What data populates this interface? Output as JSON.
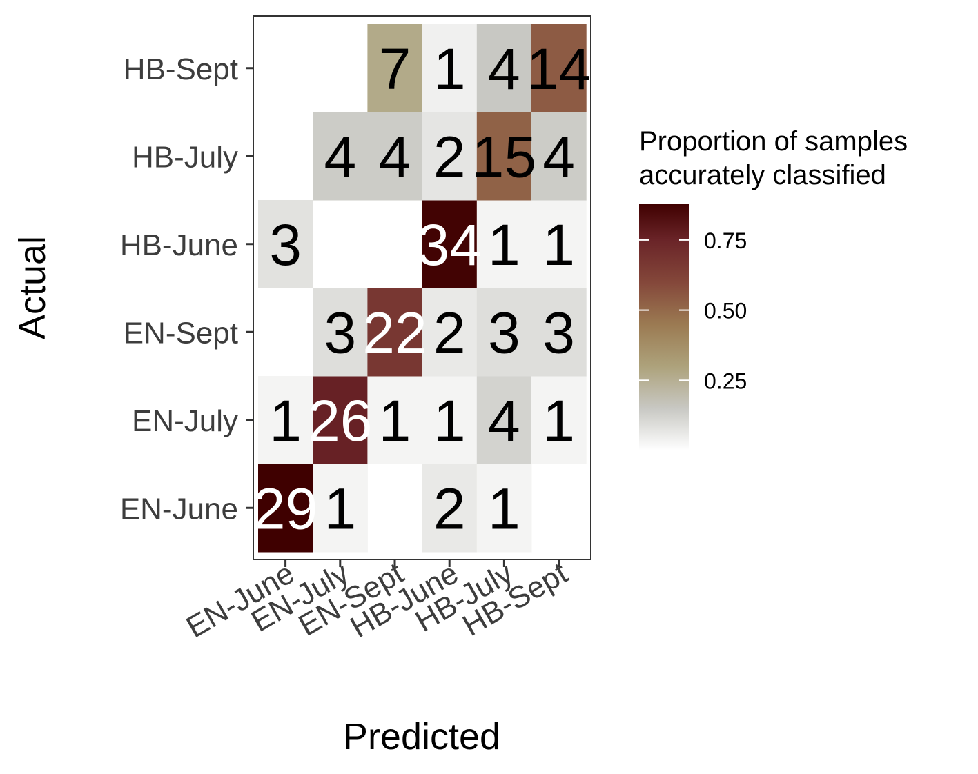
{
  "chart_data": {
    "type": "heatmap",
    "xlabel": "Predicted",
    "ylabel": "Actual",
    "x_categories": [
      "EN-June",
      "EN-July",
      "EN-Sept",
      "HB-June",
      "HB-July",
      "HB-Sept"
    ],
    "y_categories": [
      "EN-June",
      "EN-July",
      "EN-Sept",
      "HB-June",
      "HB-July",
      "HB-Sept"
    ],
    "cells": [
      {
        "actual": "EN-June",
        "predicted": "EN-June",
        "count": 29,
        "proportion": 0.88
      },
      {
        "actual": "EN-June",
        "predicted": "EN-July",
        "count": 1,
        "proportion": 0.03
      },
      {
        "actual": "EN-June",
        "predicted": "HB-June",
        "count": 2,
        "proportion": 0.06
      },
      {
        "actual": "EN-June",
        "predicted": "HB-July",
        "count": 1,
        "proportion": 0.03
      },
      {
        "actual": "EN-July",
        "predicted": "EN-June",
        "count": 1,
        "proportion": 0.03
      },
      {
        "actual": "EN-July",
        "predicted": "EN-July",
        "count": 26,
        "proportion": 0.76
      },
      {
        "actual": "EN-July",
        "predicted": "EN-Sept",
        "count": 1,
        "proportion": 0.03
      },
      {
        "actual": "EN-July",
        "predicted": "HB-June",
        "count": 1,
        "proportion": 0.03
      },
      {
        "actual": "EN-July",
        "predicted": "HB-July",
        "count": 4,
        "proportion": 0.12
      },
      {
        "actual": "EN-July",
        "predicted": "HB-Sept",
        "count": 1,
        "proportion": 0.03
      },
      {
        "actual": "EN-Sept",
        "predicted": "EN-July",
        "count": 3,
        "proportion": 0.09
      },
      {
        "actual": "EN-Sept",
        "predicted": "EN-Sept",
        "count": 22,
        "proportion": 0.67
      },
      {
        "actual": "EN-Sept",
        "predicted": "HB-June",
        "count": 2,
        "proportion": 0.06
      },
      {
        "actual": "EN-Sept",
        "predicted": "HB-July",
        "count": 3,
        "proportion": 0.09
      },
      {
        "actual": "EN-Sept",
        "predicted": "HB-Sept",
        "count": 3,
        "proportion": 0.09
      },
      {
        "actual": "HB-June",
        "predicted": "EN-June",
        "count": 3,
        "proportion": 0.08
      },
      {
        "actual": "HB-June",
        "predicted": "HB-June",
        "count": 34,
        "proportion": 0.87
      },
      {
        "actual": "HB-June",
        "predicted": "HB-July",
        "count": 1,
        "proportion": 0.03
      },
      {
        "actual": "HB-June",
        "predicted": "HB-Sept",
        "count": 1,
        "proportion": 0.03
      },
      {
        "actual": "HB-July",
        "predicted": "EN-July",
        "count": 4,
        "proportion": 0.14
      },
      {
        "actual": "HB-July",
        "predicted": "EN-Sept",
        "count": 4,
        "proportion": 0.14
      },
      {
        "actual": "HB-July",
        "predicted": "HB-June",
        "count": 2,
        "proportion": 0.07
      },
      {
        "actual": "HB-July",
        "predicted": "HB-July",
        "count": 15,
        "proportion": 0.52
      },
      {
        "actual": "HB-July",
        "predicted": "HB-Sept",
        "count": 4,
        "proportion": 0.14
      },
      {
        "actual": "HB-Sept",
        "predicted": "EN-Sept",
        "count": 7,
        "proportion": 0.27
      },
      {
        "actual": "HB-Sept",
        "predicted": "HB-June",
        "count": 1,
        "proportion": 0.04
      },
      {
        "actual": "HB-Sept",
        "predicted": "HB-July",
        "count": 4,
        "proportion": 0.15
      },
      {
        "actual": "HB-Sept",
        "predicted": "HB-Sept",
        "count": 14,
        "proportion": 0.54
      }
    ],
    "legend": {
      "title_lines": [
        "Proportion of samples",
        "accurately classified"
      ],
      "ticks": [
        0.25,
        0.5,
        0.75
      ],
      "tick_labels": [
        "0.25",
        "0.50",
        "0.75"
      ],
      "range": [
        0,
        0.88
      ],
      "placement": "right"
    },
    "color_scale": [
      {
        "value": 0.0,
        "color": "#ffffff"
      },
      {
        "value": 0.15,
        "color": "#c8c8c3"
      },
      {
        "value": 0.3,
        "color": "#ada27b"
      },
      {
        "value": 0.45,
        "color": "#9b7a52"
      },
      {
        "value": 0.6,
        "color": "#84473a"
      },
      {
        "value": 0.75,
        "color": "#6a2428"
      },
      {
        "value": 0.88,
        "color": "#3f0000"
      }
    ],
    "grid": false
  }
}
